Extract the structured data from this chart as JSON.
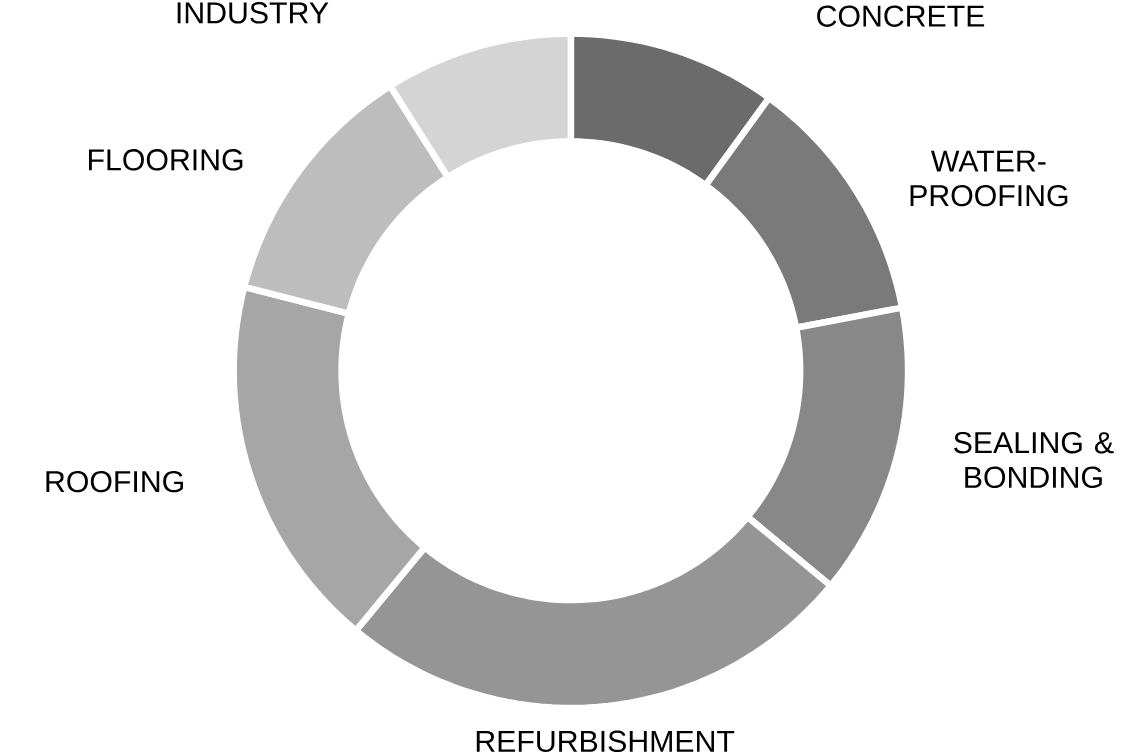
{
  "chart_data": {
    "type": "donut",
    "categories": [
      "CONCRETE",
      "WATER-PROOFING",
      "SEALING & BONDING",
      "REFURBISHMENT",
      "ROOFING",
      "FLOORING",
      "INDUSTRY"
    ],
    "values": [
      10,
      12,
      14,
      25,
      18,
      12,
      9
    ],
    "colors": [
      "#6b6b6b",
      "#7a7a7a",
      "#888888",
      "#959595",
      "#a6a6a6",
      "#bdbdbd",
      "#d4d4d4"
    ]
  }
}
